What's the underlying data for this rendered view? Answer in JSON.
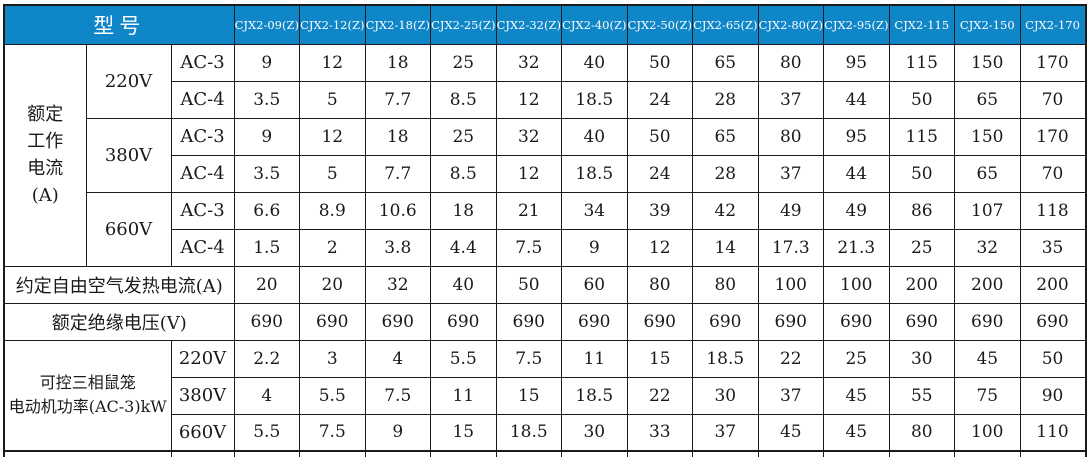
{
  "theme": {
    "header_bg": "#0e86c8",
    "header_text": "#ffffff",
    "border": "#1b1b1b",
    "text": "#1a1a1a"
  },
  "table": {
    "model_header": "型号",
    "columns": [
      "CJX2-09(Z)",
      "CJX2-12(Z)",
      "CJX2-18(Z)",
      "CJX2-25(Z)",
      "CJX2-32(Z)",
      "CJX2-40(Z)",
      "CJX2-50(Z)",
      "CJX2-65(Z)",
      "CJX2-80(Z)",
      "CJX2-95(Z)",
      "CJX2-115",
      "CJX2-150",
      "CJX2-170"
    ],
    "rated_current": {
      "label": "额定工作电流(A)",
      "label_lines": [
        "额定",
        "工作",
        "电流",
        "(A)"
      ],
      "groups": [
        {
          "voltage": "220V",
          "rows": [
            {
              "type": "AC-3",
              "values": [
                "9",
                "12",
                "18",
                "25",
                "32",
                "40",
                "50",
                "65",
                "80",
                "95",
                "115",
                "150",
                "170"
              ]
            },
            {
              "type": "AC-4",
              "values": [
                "3.5",
                "5",
                "7.7",
                "8.5",
                "12",
                "18.5",
                "24",
                "28",
                "37",
                "44",
                "50",
                "65",
                "70"
              ]
            }
          ]
        },
        {
          "voltage": "380V",
          "rows": [
            {
              "type": "AC-3",
              "values": [
                "9",
                "12",
                "18",
                "25",
                "32",
                "40",
                "50",
                "65",
                "80",
                "95",
                "115",
                "150",
                "170"
              ]
            },
            {
              "type": "AC-4",
              "values": [
                "3.5",
                "5",
                "7.7",
                "8.5",
                "12",
                "18.5",
                "24",
                "28",
                "37",
                "44",
                "50",
                "65",
                "70"
              ]
            }
          ]
        },
        {
          "voltage": "660V",
          "rows": [
            {
              "type": "AC-3",
              "values": [
                "6.6",
                "8.9",
                "10.6",
                "18",
                "21",
                "34",
                "39",
                "42",
                "49",
                "49",
                "86",
                "107",
                "118"
              ]
            },
            {
              "type": "AC-4",
              "values": [
                "1.5",
                "2",
                "3.8",
                "4.4",
                "7.5",
                "9",
                "12",
                "14",
                "17.3",
                "21.3",
                "25",
                "32",
                "35"
              ]
            }
          ]
        }
      ]
    },
    "thermal_current": {
      "label": "约定自由空气发热电流(A)",
      "values": [
        "20",
        "20",
        "32",
        "40",
        "50",
        "60",
        "80",
        "80",
        "100",
        "100",
        "200",
        "200",
        "200"
      ]
    },
    "insulation_voltage": {
      "label": "额定绝缘电压(V)",
      "values": [
        "690",
        "690",
        "690",
        "690",
        "690",
        "690",
        "690",
        "690",
        "690",
        "690",
        "690",
        "690",
        "690"
      ]
    },
    "motor_power": {
      "label": "可控三相鼠笼电动机功率(AC-3)kW",
      "label_lines": [
        "可控三相鼠笼",
        "电动机功率(AC-3)kW"
      ],
      "groups": [
        {
          "voltage": "220V",
          "values": [
            "2.2",
            "3",
            "4",
            "5.5",
            "7.5",
            "11",
            "15",
            "18.5",
            "22",
            "25",
            "30",
            "45",
            "50"
          ]
        },
        {
          "voltage": "380V",
          "values": [
            "4",
            "5.5",
            "7.5",
            "11",
            "15",
            "18.5",
            "22",
            "30",
            "37",
            "45",
            "55",
            "75",
            "90"
          ]
        },
        {
          "voltage": "660V",
          "values": [
            "5.5",
            "7.5",
            "9",
            "15",
            "18.5",
            "30",
            "33",
            "37",
            "45",
            "45",
            "80",
            "100",
            "110"
          ]
        }
      ]
    }
  }
}
